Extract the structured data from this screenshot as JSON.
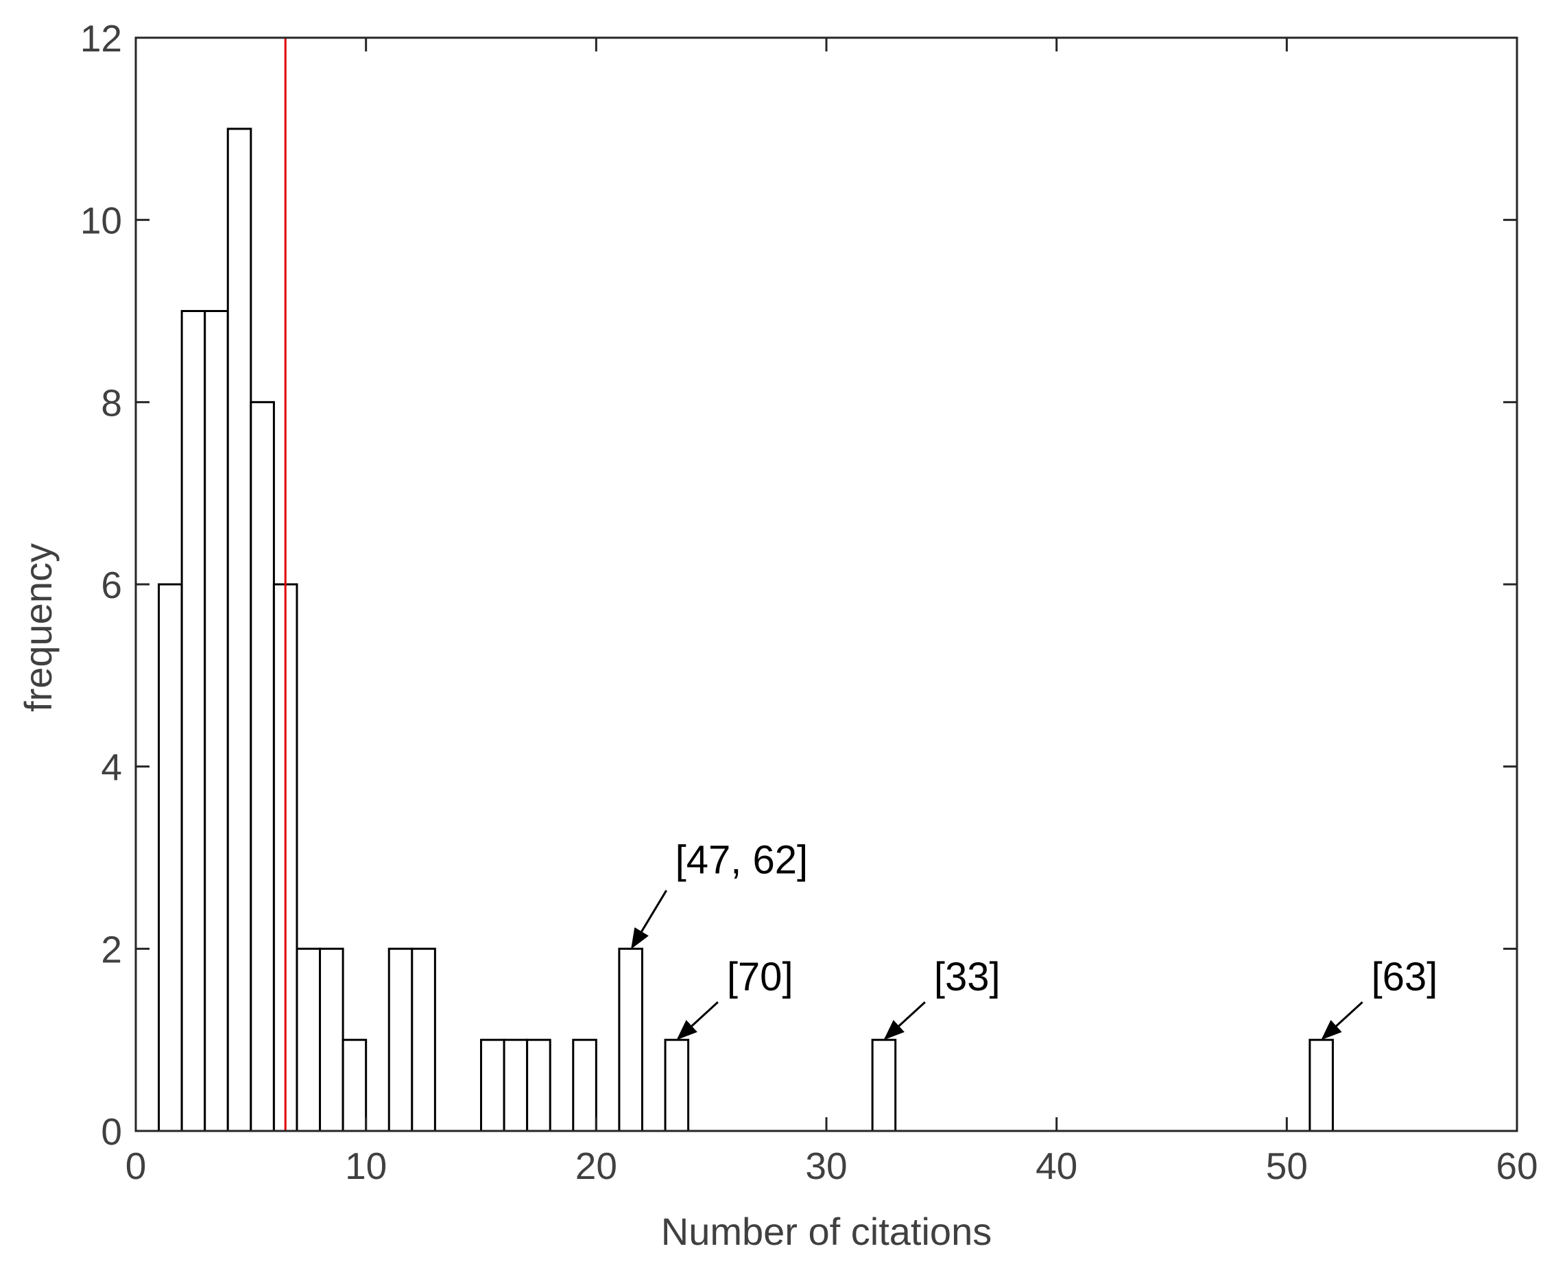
{
  "chart_data": {
    "type": "bar",
    "title": "",
    "xlabel": "Number of citations",
    "ylabel": "frequency",
    "xlim": [
      0,
      60
    ],
    "ylim": [
      0,
      12
    ],
    "xticks": [
      "0",
      "10",
      "20",
      "30",
      "40",
      "50",
      "60"
    ],
    "yticks": [
      "0",
      "2",
      "4",
      "6",
      "8",
      "10",
      "12"
    ],
    "grid": false,
    "bin_width": 1,
    "bins": [
      {
        "x0": 1,
        "x1": 2,
        "count": 6
      },
      {
        "x0": 2,
        "x1": 3,
        "count": 9
      },
      {
        "x0": 3,
        "x1": 4,
        "count": 9
      },
      {
        "x0": 4,
        "x1": 5,
        "count": 11
      },
      {
        "x0": 5,
        "x1": 6,
        "count": 8
      },
      {
        "x0": 6,
        "x1": 7,
        "count": 6
      },
      {
        "x0": 7,
        "x1": 8,
        "count": 2
      },
      {
        "x0": 8,
        "x1": 9,
        "count": 2
      },
      {
        "x0": 9,
        "x1": 10,
        "count": 1
      },
      {
        "x0": 11,
        "x1": 12,
        "count": 2
      },
      {
        "x0": 12,
        "x1": 13,
        "count": 2
      },
      {
        "x0": 15,
        "x1": 16,
        "count": 1
      },
      {
        "x0": 16,
        "x1": 17,
        "count": 1
      },
      {
        "x0": 17,
        "x1": 18,
        "count": 1
      },
      {
        "x0": 19,
        "x1": 20,
        "count": 1
      },
      {
        "x0": 21,
        "x1": 22,
        "count": 2
      },
      {
        "x0": 23,
        "x1": 24,
        "count": 1
      },
      {
        "x0": 32,
        "x1": 33,
        "count": 1
      },
      {
        "x0": 51,
        "x1": 52,
        "count": 1
      }
    ],
    "reference_line": {
      "x": 6.5,
      "color": "#e00000"
    },
    "annotations": [
      {
        "text": "[47, 62]",
        "x": 21.5,
        "y": 2
      },
      {
        "text": "[70]",
        "x": 23.5,
        "y": 1
      },
      {
        "text": "[33]",
        "x": 32.5,
        "y": 1
      },
      {
        "text": "[63]",
        "x": 51.5,
        "y": 1
      }
    ]
  }
}
